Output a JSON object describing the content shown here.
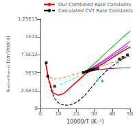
{
  "chart_data": {
    "type": "line",
    "xlabel": "10000/T (K⁻¹)",
    "ylabel": "kₙₒ₂₊ₒ→ₙₒ₊ₒ₂ (cm³/mol s)",
    "xlim": [
      0,
      50
    ],
    "ylim": [
      0,
      12500000000000.0
    ],
    "xticks": [
      0,
      10,
      20,
      30,
      40,
      50
    ],
    "yticks": [
      0,
      {
        "value": 2500000000000.0,
        "label": "2.5E12"
      },
      {
        "value": 5000000000000.0,
        "label": "5E12"
      },
      {
        "value": 7500000000000.0,
        "label": "7.5E12"
      },
      {
        "value": 10000000000000.0,
        "label": "1E13"
      },
      {
        "value": 12500000000000.0,
        "label": "1.25E13"
      }
    ],
    "grid": false,
    "legend": "upper right",
    "series": [
      {
        "name": "Our Combined Rate Constants",
        "type": "line",
        "color": "red",
        "line_style": "solid",
        "x": [
          3.0,
          4.5,
          7.0,
          10.0,
          13.0,
          17.0,
          21.0,
          25.0,
          30.0,
          35.0,
          40.0,
          45.0,
          50.0
        ],
        "values": [
          6350000000000.0,
          4200000000000.0,
          2200000000000.0,
          1850000000000.0,
          2100000000000.0,
          3000000000000.0,
          3900000000000.0,
          4800000000000.0,
          5600000000000.0,
          6300000000000.0,
          7100000000000.0,
          7900000000000.0,
          8600000000000.0
        ]
      },
      {
        "name": "Calculated CVT Rate Constants",
        "type": "line",
        "color": "black",
        "line_style": "dashed",
        "x": [
          3.0,
          4.5,
          6.0,
          8.0,
          10.0,
          12.0,
          15.0,
          18.0,
          21.0,
          25.0,
          29.0,
          33.0,
          37.0,
          41.0,
          45.0,
          49.0
        ],
        "values": [
          6350000000000.0,
          4300000000000.0,
          2600000000000.0,
          1400000000000.0,
          800000000000.0,
          550000000000.0,
          450000000000.0,
          600000000000.0,
          1000000000000.0,
          1900000000000.0,
          3100000000000.0,
          4300000000000.0,
          5300000000000.0,
          6100000000000.0,
          6800000000000.0,
          7400000000000.0
        ]
      },
      {
        "type": "line",
        "color": "#FF8C00",
        "line_style": "dashed",
        "x": [
          3.0,
          8.0,
          14.0,
          20.0,
          27.0,
          34.0,
          42.0,
          50.0
        ],
        "values": [
          4550000000000.0,
          4100000000000.0,
          4400000000000.0,
          4850000000000.0,
          5350000000000.0,
          5900000000000.0,
          6600000000000.0,
          7350000000000.0
        ]
      },
      {
        "type": "line",
        "color": "cyan",
        "line_style": "dashed",
        "x": [
          11.0,
          17.0,
          24.0,
          30.0
        ],
        "values": [
          3350000000000.0,
          4000000000000.0,
          4850000000000.0,
          5500000000000.0
        ]
      },
      {
        "type": "line",
        "color": "#00cc00",
        "line_style": "solid",
        "x": [
          24.0,
          28.0,
          32.0,
          36.0,
          40.0,
          44.0,
          48.0,
          50.0
        ],
        "values": [
          4900000000000.0,
          5800000000000.0,
          6700000000000.0,
          7700000000000.0,
          8600000000000.0,
          9500000000000.0,
          10400000000000.0,
          10800000000000.0
        ]
      },
      {
        "type": "line",
        "color": "#4444ff",
        "line_style": "solid",
        "x": [
          24.0,
          29.0,
          34.0,
          39.0,
          44.0,
          49.0
        ],
        "values": [
          4950000000000.0,
          5650000000000.0,
          6400000000000.0,
          7200000000000.0,
          8000000000000.0,
          8800000000000.0
        ]
      },
      {
        "type": "line",
        "color": "magenta",
        "line_style": "solid",
        "x": [
          24.0,
          29.0,
          34.0,
          39.0,
          44.0,
          50.0
        ],
        "values": [
          5000000000000.0,
          5750000000000.0,
          6550000000000.0,
          7400000000000.0,
          8300000000000.0,
          9400000000000.0
        ]
      },
      {
        "type": "line",
        "color": "#8800bb",
        "line_style": "solid",
        "x": [
          24.0,
          30.0,
          37.0,
          44.0,
          50.0
        ],
        "values": [
          5050000000000.0,
          5350000000000.0,
          5550000000000.0,
          5650000000000.0,
          5700000000000.0
        ]
      },
      {
        "type": "scatter",
        "color": "black",
        "marker": "square",
        "x": [
          3.3,
          4.2,
          8.0,
          24,
          25.5,
          26.5,
          27.5,
          28.5,
          29.5,
          30.5,
          32,
          44,
          46,
          48.5
        ],
        "values": [
          6400000000000.0,
          4500000000000.0,
          3100000000000.0,
          5050000000000.0,
          5150000000000.0,
          5250000000000.0,
          5350000000000.0,
          5400000000000.0,
          5480000000000.0,
          5520000000000.0,
          5600000000000.0,
          6900000000000.0,
          7150000000000.0,
          7500000000000.0
        ]
      },
      {
        "type": "scatter",
        "color": "cyan",
        "marker": "circle",
        "x": [
          32
        ],
        "values": [
          4100000000000.0
        ]
      },
      {
        "type": "scatter",
        "color": "#00cc00",
        "marker": "circle",
        "x": [
          34.5
        ],
        "values": [
          3850000000000.0
        ]
      }
    ]
  }
}
